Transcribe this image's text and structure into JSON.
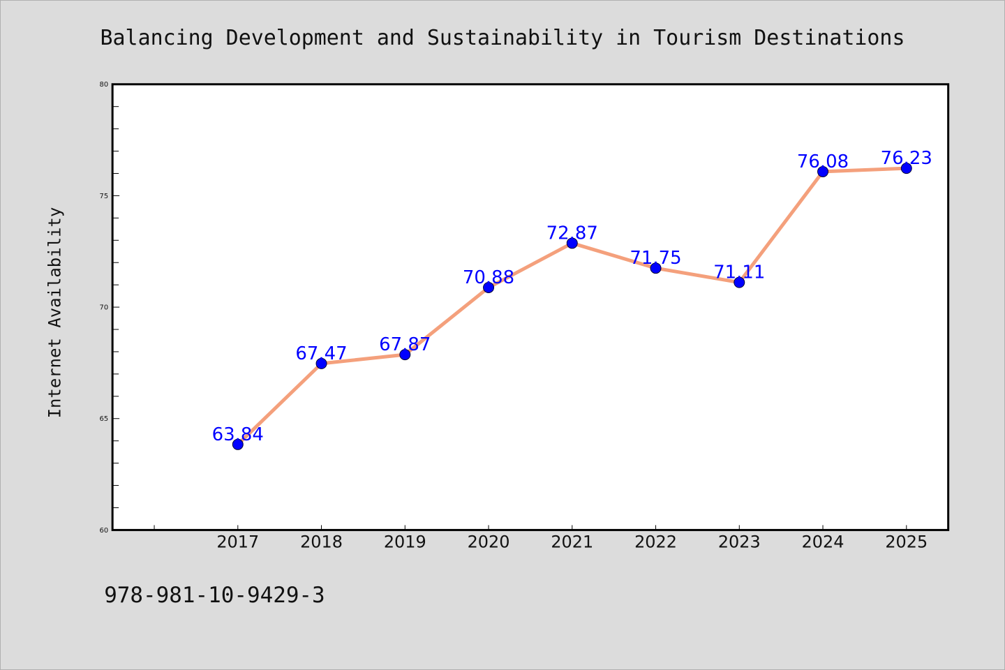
{
  "chart_data": {
    "type": "line",
    "title": "Balancing Development and Sustainability in Tourism Destinations",
    "xlabel": "",
    "ylabel": "Internet Availability",
    "categories": [
      "2017",
      "2018",
      "2019",
      "2020",
      "2021",
      "2022",
      "2023",
      "2024",
      "2025"
    ],
    "series": [
      {
        "values": [
          63.84,
          67.47,
          67.87,
          70.88,
          72.87,
          71.75,
          71.11,
          76.08,
          76.23
        ]
      }
    ],
    "data_labels": [
      "63.84",
      "67.47",
      "67.87",
      "70.88",
      "72.87",
      "71.75",
      "71.11",
      "76.08",
      "76.23"
    ],
    "yticks": [
      60,
      65,
      70,
      75,
      80
    ],
    "ylim": [
      60,
      80
    ],
    "grid": false,
    "legend": "none",
    "colors": {
      "line": "#f4a07c",
      "marker": "#0000ff",
      "data_label": "#0000ff",
      "background": "#dcdcdc",
      "plot_background": "#ffffff"
    }
  },
  "footer": {
    "code": "978-981-10-9429-3"
  }
}
